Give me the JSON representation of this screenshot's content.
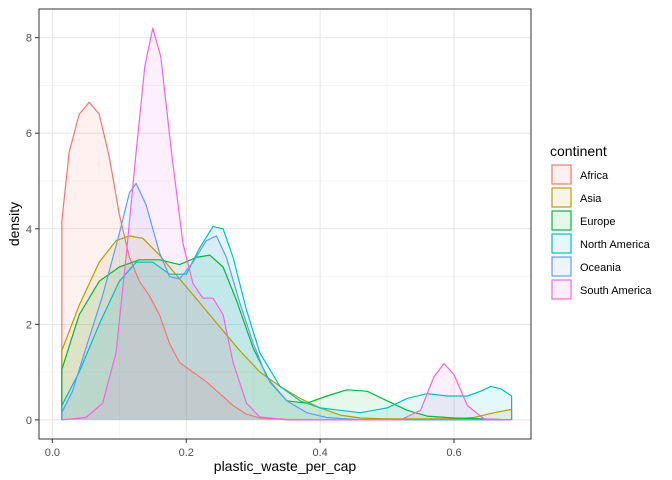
{
  "chart_data": {
    "type": "area",
    "subtype": "density",
    "xlabel": "plastic_waste_per_cap",
    "ylabel": "density",
    "xlim": [
      -0.02,
      0.715
    ],
    "ylim": [
      -0.4,
      8.6
    ],
    "x_ticks": [
      0.0,
      0.2,
      0.4,
      0.6
    ],
    "x_tick_labels": [
      "0.0",
      "0.2",
      "0.4",
      "0.6"
    ],
    "y_ticks": [
      0,
      2,
      4,
      6,
      8
    ],
    "y_tick_labels": [
      "0",
      "2",
      "4",
      "6",
      "8"
    ],
    "grid": true,
    "legend": {
      "title": "continent",
      "placement": "right"
    },
    "series": [
      {
        "name": "Africa",
        "color": "#F8766D",
        "points": [
          [
            0.014,
            4.15
          ],
          [
            0.025,
            5.6
          ],
          [
            0.04,
            6.4
          ],
          [
            0.055,
            6.65
          ],
          [
            0.07,
            6.4
          ],
          [
            0.085,
            5.5
          ],
          [
            0.1,
            4.3
          ],
          [
            0.115,
            3.4
          ],
          [
            0.13,
            2.9
          ],
          [
            0.145,
            2.6
          ],
          [
            0.16,
            2.2
          ],
          [
            0.175,
            1.6
          ],
          [
            0.19,
            1.2
          ],
          [
            0.21,
            1.0
          ],
          [
            0.23,
            0.8
          ],
          [
            0.25,
            0.55
          ],
          [
            0.27,
            0.3
          ],
          [
            0.29,
            0.12
          ],
          [
            0.31,
            0.04
          ],
          [
            0.35,
            0.01
          ],
          [
            0.4,
            0.0
          ],
          [
            0.5,
            0.0
          ],
          [
            0.6,
            0.0
          ],
          [
            0.686,
            0.0
          ]
        ]
      },
      {
        "name": "Asia",
        "color": "#B79F00",
        "points": [
          [
            0.014,
            1.45
          ],
          [
            0.04,
            2.4
          ],
          [
            0.07,
            3.3
          ],
          [
            0.095,
            3.75
          ],
          [
            0.115,
            3.85
          ],
          [
            0.135,
            3.8
          ],
          [
            0.16,
            3.45
          ],
          [
            0.19,
            2.95
          ],
          [
            0.22,
            2.45
          ],
          [
            0.25,
            1.95
          ],
          [
            0.28,
            1.45
          ],
          [
            0.31,
            1.0
          ],
          [
            0.34,
            0.7
          ],
          [
            0.37,
            0.45
          ],
          [
            0.4,
            0.25
          ],
          [
            0.43,
            0.1
          ],
          [
            0.46,
            0.04
          ],
          [
            0.5,
            0.02
          ],
          [
            0.55,
            0.02
          ],
          [
            0.6,
            0.02
          ],
          [
            0.63,
            0.05
          ],
          [
            0.66,
            0.15
          ],
          [
            0.686,
            0.22
          ]
        ]
      },
      {
        "name": "Europe",
        "color": "#00BA38",
        "points": [
          [
            0.014,
            1.05
          ],
          [
            0.04,
            2.2
          ],
          [
            0.07,
            2.9
          ],
          [
            0.1,
            3.2
          ],
          [
            0.13,
            3.35
          ],
          [
            0.16,
            3.35
          ],
          [
            0.19,
            3.25
          ],
          [
            0.215,
            3.4
          ],
          [
            0.235,
            3.45
          ],
          [
            0.255,
            3.2
          ],
          [
            0.275,
            2.5
          ],
          [
            0.3,
            1.5
          ],
          [
            0.325,
            0.8
          ],
          [
            0.35,
            0.4
          ],
          [
            0.38,
            0.35
          ],
          [
            0.41,
            0.5
          ],
          [
            0.44,
            0.63
          ],
          [
            0.47,
            0.6
          ],
          [
            0.5,
            0.4
          ],
          [
            0.53,
            0.2
          ],
          [
            0.56,
            0.08
          ],
          [
            0.6,
            0.04
          ],
          [
            0.64,
            0.02
          ],
          [
            0.686,
            0.0
          ]
        ]
      },
      {
        "name": "North America",
        "color": "#00BFC4",
        "points": [
          [
            0.014,
            0.3
          ],
          [
            0.04,
            1.0
          ],
          [
            0.07,
            2.0
          ],
          [
            0.1,
            2.9
          ],
          [
            0.125,
            3.3
          ],
          [
            0.15,
            3.3
          ],
          [
            0.175,
            3.05
          ],
          [
            0.2,
            3.05
          ],
          [
            0.22,
            3.6
          ],
          [
            0.24,
            4.05
          ],
          [
            0.255,
            4.0
          ],
          [
            0.27,
            3.4
          ],
          [
            0.29,
            2.3
          ],
          [
            0.31,
            1.4
          ],
          [
            0.34,
            0.7
          ],
          [
            0.37,
            0.4
          ],
          [
            0.4,
            0.25
          ],
          [
            0.43,
            0.2
          ],
          [
            0.46,
            0.15
          ],
          [
            0.5,
            0.25
          ],
          [
            0.53,
            0.45
          ],
          [
            0.56,
            0.55
          ],
          [
            0.59,
            0.5
          ],
          [
            0.62,
            0.5
          ],
          [
            0.64,
            0.6
          ],
          [
            0.655,
            0.7
          ],
          [
            0.67,
            0.65
          ],
          [
            0.686,
            0.5
          ]
        ]
      },
      {
        "name": "Oceania",
        "color": "#619CFF",
        "points": [
          [
            0.014,
            0.15
          ],
          [
            0.03,
            0.6
          ],
          [
            0.05,
            1.5
          ],
          [
            0.075,
            2.6
          ],
          [
            0.1,
            3.9
          ],
          [
            0.115,
            4.75
          ],
          [
            0.125,
            4.95
          ],
          [
            0.14,
            4.5
          ],
          [
            0.16,
            3.5
          ],
          [
            0.175,
            3.0
          ],
          [
            0.19,
            2.95
          ],
          [
            0.21,
            3.3
          ],
          [
            0.23,
            3.75
          ],
          [
            0.245,
            3.85
          ],
          [
            0.26,
            3.4
          ],
          [
            0.28,
            2.45
          ],
          [
            0.3,
            1.6
          ],
          [
            0.32,
            0.9
          ],
          [
            0.35,
            0.4
          ],
          [
            0.38,
            0.15
          ],
          [
            0.41,
            0.05
          ],
          [
            0.45,
            0.01
          ],
          [
            0.5,
            0.0
          ],
          [
            0.6,
            0.0
          ],
          [
            0.686,
            0.0
          ]
        ]
      },
      {
        "name": "South America",
        "color": "#F564E3",
        "points": [
          [
            0.014,
            0.0
          ],
          [
            0.05,
            0.05
          ],
          [
            0.075,
            0.35
          ],
          [
            0.095,
            1.4
          ],
          [
            0.11,
            3.4
          ],
          [
            0.125,
            5.6
          ],
          [
            0.138,
            7.4
          ],
          [
            0.15,
            8.2
          ],
          [
            0.162,
            7.6
          ],
          [
            0.178,
            5.6
          ],
          [
            0.195,
            3.7
          ],
          [
            0.21,
            2.85
          ],
          [
            0.225,
            2.55
          ],
          [
            0.24,
            2.55
          ],
          [
            0.255,
            2.2
          ],
          [
            0.27,
            1.2
          ],
          [
            0.29,
            0.35
          ],
          [
            0.31,
            0.06
          ],
          [
            0.35,
            0.0
          ],
          [
            0.45,
            0.0
          ],
          [
            0.52,
            0.0
          ],
          [
            0.55,
            0.2
          ],
          [
            0.57,
            0.9
          ],
          [
            0.585,
            1.18
          ],
          [
            0.6,
            0.95
          ],
          [
            0.62,
            0.3
          ],
          [
            0.645,
            0.02
          ],
          [
            0.686,
            0.0
          ]
        ]
      }
    ]
  }
}
